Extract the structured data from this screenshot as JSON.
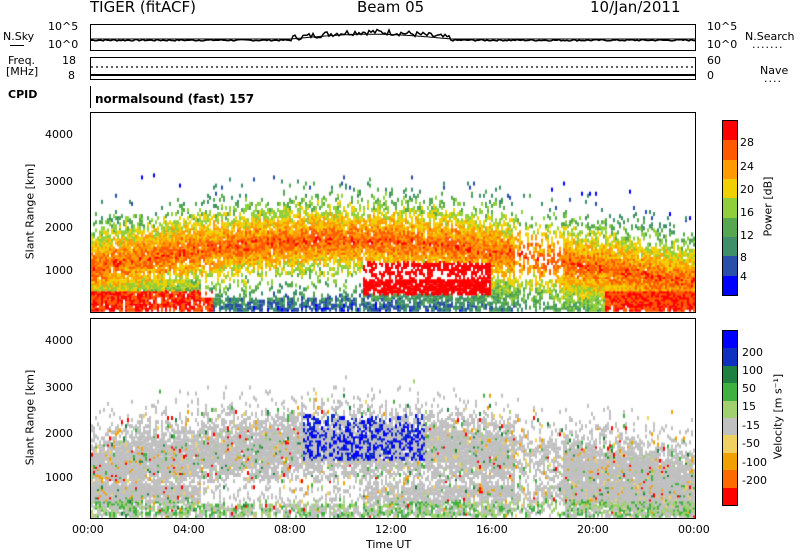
{
  "header": {
    "radar": "TIGER (fitACF)",
    "beam": "Beam 05",
    "date": "10/Jan/2011"
  },
  "strip_panels": {
    "nsky": {
      "label": "N.Sky",
      "ticks_left": [
        "10^5",
        "10^0"
      ],
      "ticks_right": [
        "10^5",
        "10^0"
      ],
      "right_label": "N.Search",
      "right_label_suffix": "......."
    },
    "freq": {
      "label_line1": "Freq.",
      "label_line2": "[MHz]",
      "ticks_left": [
        "18",
        "8"
      ],
      "ticks_right": [
        "60",
        "0"
      ],
      "right_label": "Nave",
      "right_label_suffix": "...."
    },
    "cpid": {
      "label": "CPID",
      "value": "normalsound (fast) 157"
    }
  },
  "chart_data": [
    {
      "type": "heatmap",
      "title": "",
      "ylabel": "Slant Range [km]",
      "ylim": [
        200,
        4600
      ],
      "y_ticks": [
        "4000",
        "3000",
        "2000",
        "1000"
      ],
      "colorbar": {
        "label": "Power [dB]",
        "ticks": [
          "28",
          "24",
          "20",
          "16",
          "12",
          "8",
          "4"
        ],
        "colors": [
          "#0000ff",
          "#2a4fa8",
          "#3f8f6a",
          "#55a84f",
          "#8fcf3c",
          "#f0d000",
          "#ff9a00",
          "#ff5a00",
          "#ff0000"
        ]
      }
    },
    {
      "type": "heatmap",
      "title": "",
      "ylabel": "Slant Range [km]",
      "ylim": [
        200,
        4600
      ],
      "y_ticks": [
        "4000",
        "3000",
        "2000",
        "1000"
      ],
      "colorbar": {
        "label": "Velocity [m s⁻¹]",
        "ticks": [
          "200",
          "100",
          "50",
          "15",
          "-15",
          "-50",
          "-100",
          "-200"
        ],
        "colors": [
          "#ff0000",
          "#ff6a00",
          "#f0a000",
          "#f0d060",
          "#c0c0c0",
          "#a0d070",
          "#40b040",
          "#208040",
          "#1030c0",
          "#0000ff"
        ]
      }
    }
  ],
  "x_axis": {
    "label": "Time UT",
    "ticks": [
      "00:00",
      "04:00",
      "08:00",
      "12:00",
      "16:00",
      "20:00",
      "00:00"
    ]
  }
}
